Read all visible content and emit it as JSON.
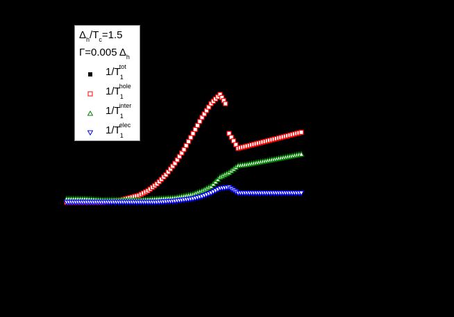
{
  "chart_data": {
    "type": "scatter",
    "title": "",
    "xlabel": "",
    "ylabel": "",
    "background": "#000000",
    "grid": false,
    "legend_position": "upper-left",
    "annotations": [
      "Δh/Tc=1.5",
      "Γ=0.005 Δh"
    ],
    "params": {
      "delta_h_over_Tc": "1.5",
      "gamma": "0.005 Δh"
    },
    "series": [
      {
        "name": "1/T1^tot",
        "marker": "filled-square",
        "color": "#000000",
        "x": [
          0.1,
          0.2,
          0.3,
          0.4,
          0.5,
          0.55,
          0.6,
          0.65,
          0.7,
          0.75,
          0.8,
          0.85,
          0.9,
          0.95,
          0.98,
          1.0,
          1.05,
          1.1,
          1.15,
          1.2,
          1.25,
          1.3,
          1.35,
          1.4
        ],
        "y": [
          0.0,
          0.0,
          0.0,
          0.02,
          0.06,
          0.1,
          0.16,
          0.24,
          0.34,
          0.46,
          0.6,
          0.74,
          0.86,
          0.94,
          0.86,
          0.6,
          0.47,
          0.49,
          0.51,
          0.53,
          0.55,
          0.57,
          0.59,
          0.61
        ]
      },
      {
        "name": "1/T1^hole",
        "marker": "open-square",
        "color": "#ff0000",
        "x": [
          0.1,
          0.2,
          0.3,
          0.4,
          0.5,
          0.55,
          0.6,
          0.65,
          0.7,
          0.75,
          0.8,
          0.85,
          0.9,
          0.95,
          0.98,
          1.0,
          1.05,
          1.1,
          1.15,
          1.2,
          1.25,
          1.3,
          1.35,
          1.4
        ],
        "y": [
          0.0,
          0.0,
          0.0,
          0.02,
          0.06,
          0.1,
          0.16,
          0.24,
          0.34,
          0.46,
          0.6,
          0.74,
          0.86,
          0.94,
          0.86,
          0.6,
          0.47,
          0.49,
          0.51,
          0.53,
          0.55,
          0.57,
          0.59,
          0.61
        ]
      },
      {
        "name": "1/T1^inter",
        "marker": "open-triangle-up",
        "color": "#008000",
        "x": [
          0.1,
          0.2,
          0.3,
          0.4,
          0.5,
          0.6,
          0.7,
          0.8,
          0.85,
          0.9,
          0.95,
          1.0,
          1.05,
          1.1,
          1.2,
          1.3,
          1.4
        ],
        "y": [
          0.03,
          0.03,
          0.02,
          0.02,
          0.02,
          0.03,
          0.04,
          0.07,
          0.1,
          0.14,
          0.22,
          0.26,
          0.32,
          0.33,
          0.36,
          0.39,
          0.42
        ]
      },
      {
        "name": "1/T1^elec",
        "marker": "open-triangle-down",
        "color": "#0000ff",
        "x": [
          0.1,
          0.2,
          0.3,
          0.4,
          0.5,
          0.6,
          0.7,
          0.8,
          0.85,
          0.9,
          0.95,
          1.0,
          1.05,
          1.1,
          1.2,
          1.3,
          1.4
        ],
        "y": [
          0.0,
          0.0,
          0.0,
          0.0,
          0.0,
          0.0,
          0.01,
          0.03,
          0.05,
          0.08,
          0.12,
          0.13,
          0.08,
          0.08,
          0.08,
          0.08,
          0.08
        ]
      }
    ]
  },
  "legend": {
    "param1": {
      "delta": "Δ",
      "sub_h": "h",
      "slash_T": "/T",
      "sub_c": "c",
      "value": "=1.5"
    },
    "param2": {
      "gamma": "Γ=0.005 Δ",
      "sub_h": "h"
    },
    "entries": [
      {
        "base": "1/T",
        "sub": "1",
        "sup": "tot"
      },
      {
        "base": "1/T",
        "sub": "1",
        "sup": "hole"
      },
      {
        "base": "1/T",
        "sub": "1",
        "sup": "inter"
      },
      {
        "base": "1/T",
        "sub": "1",
        "sup": "elec"
      }
    ]
  }
}
